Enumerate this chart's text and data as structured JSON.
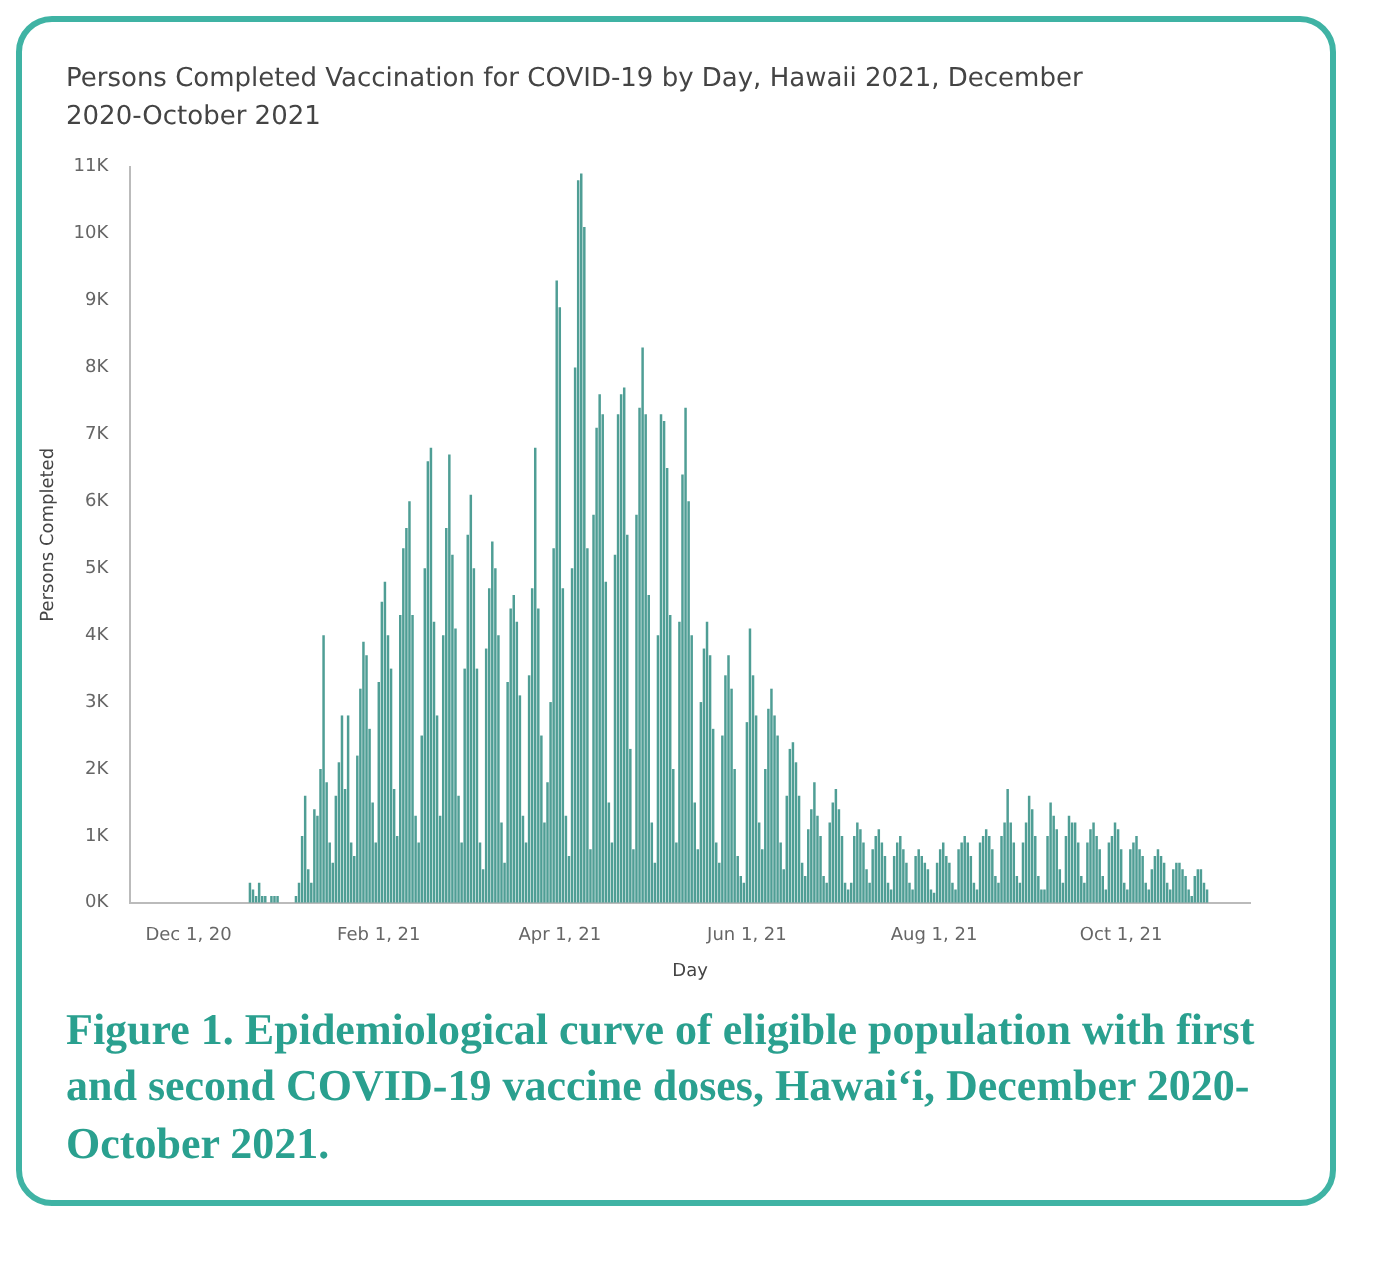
{
  "chart_data": {
    "type": "bar",
    "title": "Persons Completed Vaccination for COVID-19 by Day, Hawaii 2021, December 2020-October 2021",
    "xlabel": "Day",
    "ylabel": "Persons Completed",
    "annotations": [
      "Figure 1. Epidemiological curve of eligible population with first and second COVID-19 vaccine doses, Hawai‘i, December 2020-October 2021."
    ],
    "x": [
      "2020-12-21",
      "2020-12-22",
      "2020-12-23",
      "2020-12-24",
      "2020-12-25",
      "2020-12-26",
      "2020-12-27",
      "2020-12-28",
      "2020-12-29",
      "2020-12-30",
      "2020-12-31",
      "2021-01-01",
      "2021-01-02",
      "2021-01-03",
      "2021-01-04",
      "2021-01-05",
      "2021-01-06",
      "2021-01-07",
      "2021-01-08",
      "2021-01-09",
      "2021-01-10",
      "2021-01-11",
      "2021-01-12",
      "2021-01-13",
      "2021-01-14",
      "2021-01-15",
      "2021-01-16",
      "2021-01-17",
      "2021-01-18",
      "2021-01-19",
      "2021-01-20",
      "2021-01-21",
      "2021-01-22",
      "2021-01-23",
      "2021-01-24",
      "2021-01-25",
      "2021-01-26",
      "2021-01-27",
      "2021-01-28",
      "2021-01-29",
      "2021-01-30",
      "2021-01-31",
      "2021-02-01",
      "2021-02-02",
      "2021-02-03",
      "2021-02-04",
      "2021-02-05",
      "2021-02-06",
      "2021-02-07",
      "2021-02-08",
      "2021-02-09",
      "2021-02-10",
      "2021-02-11",
      "2021-02-12",
      "2021-02-13",
      "2021-02-14",
      "2021-02-15",
      "2021-02-16",
      "2021-02-17",
      "2021-02-18",
      "2021-02-19",
      "2021-02-20",
      "2021-02-21",
      "2021-02-22",
      "2021-02-23",
      "2021-02-24",
      "2021-02-25",
      "2021-02-26",
      "2021-02-27",
      "2021-02-28",
      "2021-03-01",
      "2021-03-02",
      "2021-03-03",
      "2021-03-04",
      "2021-03-05",
      "2021-03-06",
      "2021-03-07",
      "2021-03-08",
      "2021-03-09",
      "2021-03-10",
      "2021-03-11",
      "2021-03-12",
      "2021-03-13",
      "2021-03-14",
      "2021-03-15",
      "2021-03-16",
      "2021-03-17",
      "2021-03-18",
      "2021-03-19",
      "2021-03-20",
      "2021-03-21",
      "2021-03-22",
      "2021-03-23",
      "2021-03-24",
      "2021-03-25",
      "2021-03-26",
      "2021-03-27",
      "2021-03-28",
      "2021-03-29",
      "2021-03-30",
      "2021-03-31",
      "2021-04-01",
      "2021-04-02",
      "2021-04-03",
      "2021-04-04",
      "2021-04-05",
      "2021-04-06",
      "2021-04-07",
      "2021-04-08",
      "2021-04-09",
      "2021-04-10",
      "2021-04-11",
      "2021-04-12",
      "2021-04-13",
      "2021-04-14",
      "2021-04-15",
      "2021-04-16",
      "2021-04-17",
      "2021-04-18",
      "2021-04-19",
      "2021-04-20",
      "2021-04-21",
      "2021-04-22",
      "2021-04-23",
      "2021-04-24",
      "2021-04-25",
      "2021-04-26",
      "2021-04-27",
      "2021-04-28",
      "2021-04-29",
      "2021-04-30",
      "2021-05-01",
      "2021-05-02",
      "2021-05-03",
      "2021-05-04",
      "2021-05-05",
      "2021-05-06",
      "2021-05-07",
      "2021-05-08",
      "2021-05-09",
      "2021-05-10",
      "2021-05-11",
      "2021-05-12",
      "2021-05-13",
      "2021-05-14",
      "2021-05-15",
      "2021-05-16",
      "2021-05-17",
      "2021-05-18",
      "2021-05-19",
      "2021-05-20",
      "2021-05-21",
      "2021-05-22",
      "2021-05-23",
      "2021-05-24",
      "2021-05-25",
      "2021-05-26",
      "2021-05-27",
      "2021-05-28",
      "2021-05-29",
      "2021-05-30",
      "2021-05-31",
      "2021-06-01",
      "2021-06-02",
      "2021-06-03",
      "2021-06-04",
      "2021-06-05",
      "2021-06-06",
      "2021-06-07",
      "2021-06-08",
      "2021-06-09",
      "2021-06-10",
      "2021-06-11",
      "2021-06-12",
      "2021-06-13",
      "2021-06-14",
      "2021-06-15",
      "2021-06-16",
      "2021-06-17",
      "2021-06-18",
      "2021-06-19",
      "2021-06-20",
      "2021-06-21",
      "2021-06-22",
      "2021-06-23",
      "2021-06-24",
      "2021-06-25",
      "2021-06-26",
      "2021-06-27",
      "2021-06-28",
      "2021-06-29",
      "2021-06-30",
      "2021-07-01",
      "2021-07-02",
      "2021-07-03",
      "2021-07-04",
      "2021-07-05",
      "2021-07-06",
      "2021-07-07",
      "2021-07-08",
      "2021-07-09",
      "2021-07-10",
      "2021-07-11",
      "2021-07-12",
      "2021-07-13",
      "2021-07-14",
      "2021-07-15",
      "2021-07-16",
      "2021-07-17",
      "2021-07-18",
      "2021-07-19",
      "2021-07-20",
      "2021-07-21",
      "2021-07-22",
      "2021-07-23",
      "2021-07-24",
      "2021-07-25",
      "2021-07-26",
      "2021-07-27",
      "2021-07-28",
      "2021-07-29",
      "2021-07-30",
      "2021-07-31",
      "2021-08-01",
      "2021-08-02",
      "2021-08-03",
      "2021-08-04",
      "2021-08-05",
      "2021-08-06",
      "2021-08-07",
      "2021-08-08",
      "2021-08-09",
      "2021-08-10",
      "2021-08-11",
      "2021-08-12",
      "2021-08-13",
      "2021-08-14",
      "2021-08-15",
      "2021-08-16",
      "2021-08-17",
      "2021-08-18",
      "2021-08-19",
      "2021-08-20",
      "2021-08-21",
      "2021-08-22",
      "2021-08-23",
      "2021-08-24",
      "2021-08-25",
      "2021-08-26",
      "2021-08-27",
      "2021-08-28",
      "2021-08-29",
      "2021-08-30",
      "2021-08-31",
      "2021-09-01",
      "2021-09-02",
      "2021-09-03",
      "2021-09-04",
      "2021-09-05",
      "2021-09-06",
      "2021-09-07",
      "2021-09-08",
      "2021-09-09",
      "2021-09-10",
      "2021-09-11",
      "2021-09-12",
      "2021-09-13",
      "2021-09-14",
      "2021-09-15",
      "2021-09-16",
      "2021-09-17",
      "2021-09-18",
      "2021-09-19",
      "2021-09-20",
      "2021-09-21",
      "2021-09-22",
      "2021-09-23",
      "2021-09-24",
      "2021-09-25",
      "2021-09-26",
      "2021-09-27",
      "2021-09-28",
      "2021-09-29",
      "2021-09-30",
      "2021-10-01",
      "2021-10-02",
      "2021-10-03",
      "2021-10-04",
      "2021-10-05",
      "2021-10-06",
      "2021-10-07",
      "2021-10-08",
      "2021-10-09",
      "2021-10-10",
      "2021-10-11",
      "2021-10-12",
      "2021-10-13",
      "2021-10-14",
      "2021-10-15",
      "2021-10-16",
      "2021-10-17",
      "2021-10-18",
      "2021-10-19",
      "2021-10-20",
      "2021-10-21",
      "2021-10-22",
      "2021-10-23",
      "2021-10-24",
      "2021-10-25",
      "2021-10-26",
      "2021-10-27",
      "2021-10-28",
      "2021-10-29"
    ],
    "values": [
      300,
      200,
      100,
      300,
      100,
      100,
      0,
      100,
      100,
      100,
      0,
      0,
      0,
      0,
      0,
      100,
      300,
      1000,
      1600,
      500,
      300,
      1400,
      1300,
      2000,
      4000,
      1800,
      900,
      600,
      1600,
      2100,
      2800,
      1700,
      2800,
      900,
      700,
      2200,
      3200,
      3900,
      3700,
      2600,
      1500,
      900,
      3300,
      4500,
      4800,
      4000,
      3500,
      1700,
      1000,
      4300,
      5300,
      5600,
      6000,
      4300,
      1300,
      900,
      2500,
      5000,
      6600,
      6800,
      4200,
      2800,
      1300,
      4000,
      5600,
      6700,
      5200,
      4100,
      1600,
      900,
      3500,
      5500,
      6100,
      5000,
      3500,
      900,
      500,
      3800,
      4700,
      5400,
      5000,
      4000,
      1200,
      600,
      3300,
      4400,
      4600,
      4200,
      3100,
      1300,
      900,
      3400,
      4700,
      6800,
      4400,
      2500,
      1200,
      1800,
      3000,
      5300,
      9300,
      8900,
      4700,
      1300,
      700,
      5000,
      8000,
      10800,
      10900,
      10100,
      5300,
      800,
      5800,
      7100,
      7600,
      7300,
      4800,
      1500,
      900,
      5200,
      7300,
      7600,
      7700,
      5500,
      2300,
      800,
      5800,
      7400,
      8300,
      7300,
      4600,
      1200,
      600,
      4000,
      7300,
      7200,
      6500,
      4300,
      2000,
      900,
      4200,
      6400,
      7400,
      6000,
      4000,
      1500,
      800,
      3000,
      3800,
      4200,
      3700,
      2600,
      900,
      600,
      2500,
      3400,
      3700,
      3200,
      2000,
      700,
      400,
      300,
      2700,
      4100,
      3400,
      2800,
      1200,
      800,
      2000,
      2900,
      3200,
      2800,
      2500,
      900,
      500,
      1600,
      2300,
      2400,
      2100,
      1600,
      600,
      400,
      1100,
      1400,
      1800,
      1300,
      1000,
      400,
      300,
      1200,
      1500,
      1700,
      1400,
      1000,
      300,
      200,
      300,
      1000,
      1200,
      1100,
      900,
      500,
      300,
      800,
      1000,
      1100,
      900,
      700,
      300,
      200,
      700,
      900,
      1000,
      800,
      600,
      300,
      200,
      700,
      800,
      700,
      600,
      500,
      200,
      150,
      600,
      800,
      900,
      700,
      600,
      300,
      200,
      800,
      900,
      1000,
      900,
      700,
      300,
      200,
      900,
      1000,
      1100,
      1000,
      800,
      400,
      300,
      1000,
      1200,
      1700,
      1200,
      900,
      400,
      300,
      900,
      1200,
      1600,
      1400,
      1000,
      400,
      200,
      200,
      1000,
      1500,
      1300,
      1100,
      500,
      300,
      1000,
      1300,
      1200,
      1200,
      900,
      400,
      300,
      900,
      1100,
      1200,
      1000,
      800,
      400,
      200,
      900,
      1000,
      1200,
      1100,
      800,
      300,
      200,
      800,
      900,
      1000,
      800,
      700,
      300,
      200,
      500,
      700,
      800,
      700,
      600,
      300,
      200,
      500,
      600,
      600,
      500,
      400,
      200,
      100,
      400,
      500,
      500,
      300,
      200
    ],
    "color": "#4f9e95",
    "xlim": [
      "2020-11-12",
      "2021-11-12"
    ],
    "xticks": [
      {
        "value": "2020-12-01",
        "label": "Dec 1, 20"
      },
      {
        "value": "2021-02-01",
        "label": "Feb 1, 21"
      },
      {
        "value": "2021-04-01",
        "label": "Apr 1, 21"
      },
      {
        "value": "2021-06-01",
        "label": "Jun 1, 21"
      },
      {
        "value": "2021-08-01",
        "label": "Aug 1, 21"
      },
      {
        "value": "2021-10-01",
        "label": "Oct 1, 21"
      }
    ],
    "ylim": [
      0,
      11000
    ],
    "yticks": [
      {
        "value": 0,
        "label": "0K"
      },
      {
        "value": 1000,
        "label": "1K"
      },
      {
        "value": 2000,
        "label": "2K"
      },
      {
        "value": 3000,
        "label": "3K"
      },
      {
        "value": 4000,
        "label": "4K"
      },
      {
        "value": 5000,
        "label": "5K"
      },
      {
        "value": 6000,
        "label": "6K"
      },
      {
        "value": 7000,
        "label": "7K"
      },
      {
        "value": 8000,
        "label": "8K"
      },
      {
        "value": 9000,
        "label": "9K"
      },
      {
        "value": 10000,
        "label": "10K"
      },
      {
        "value": 11000,
        "label": "11K"
      }
    ],
    "grid": false,
    "legend": false
  }
}
